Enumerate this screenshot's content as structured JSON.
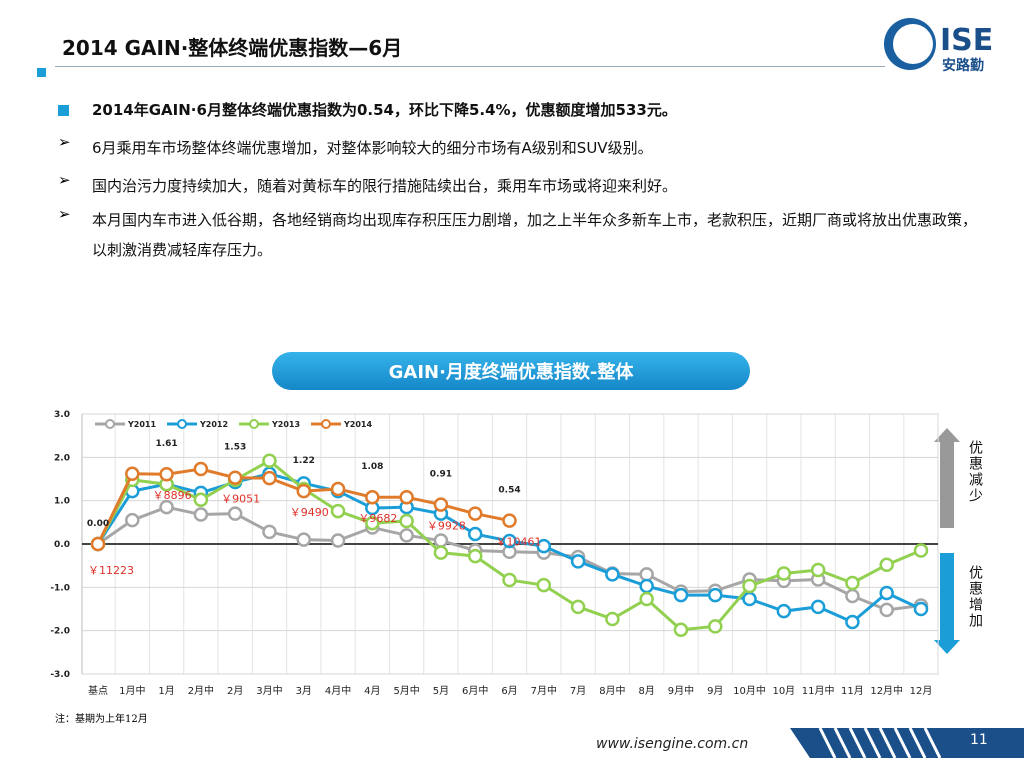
{
  "header": {
    "title": "2014 GAIN·整体终端优惠指数—6月",
    "logo": "ISE",
    "logo_sub": "安路勤"
  },
  "bullets": [
    "2014年GAIN·6月整体终端优惠指数为0.54，环比下降5.4%，优惠额度增加533元。",
    "6月乘用车市场整体终端优惠增加，对整体影响较大的细分市场有A级别和SUV级别。",
    "国内治污力度持续加大，随着对黄标车的限行措施陆续出台，乘用车市场或将迎来利好。",
    "本月国内车市进入低谷期，各地经销商均出现库存积压压力剧增，加之上半年众多新车上市，老款积压，近期厂商或将放出优惠政策，以刺激消费减轻库存压力。"
  ],
  "chart_data": {
    "type": "line",
    "title": "GAIN·月度终端优惠指数-整体",
    "categories": [
      "基点",
      "1月中",
      "1月",
      "2月中",
      "2月",
      "3月中",
      "3月",
      "4月中",
      "4月",
      "5月中",
      "5月",
      "6月中",
      "6月",
      "7月中",
      "7月",
      "8月中",
      "8月",
      "9月中",
      "9月",
      "10月中",
      "10月",
      "11月中",
      "11月",
      "12月中",
      "12月"
    ],
    "series": [
      {
        "name": "Y2011",
        "color": "#a6a6a6",
        "values": [
          0,
          0.55,
          0.85,
          0.68,
          0.7,
          0.28,
          0.1,
          0.08,
          0.38,
          0.2,
          0.08,
          -0.15,
          -0.18,
          -0.2,
          -0.3,
          -0.68,
          -0.7,
          -1.1,
          -1.08,
          -0.82,
          -0.85,
          -0.82,
          -1.2,
          -1.52,
          -1.42
        ]
      },
      {
        "name": "Y2012",
        "color": "#1b9ed8",
        "values": [
          0,
          1.22,
          1.38,
          1.18,
          1.43,
          1.62,
          1.4,
          1.22,
          0.83,
          0.85,
          0.7,
          0.23,
          0.07,
          -0.05,
          -0.4,
          -0.7,
          -0.97,
          -1.18,
          -1.18,
          -1.27,
          -1.55,
          -1.45,
          -1.8,
          -1.13,
          -1.5
        ]
      },
      {
        "name": "Y2013",
        "color": "#92d050",
        "values": [
          0,
          1.48,
          1.38,
          1.02,
          1.48,
          1.92,
          1.27,
          0.76,
          0.48,
          0.53,
          -0.2,
          -0.28,
          -0.83,
          -0.95,
          -1.45,
          -1.73,
          -1.27,
          -1.98,
          -1.9,
          -0.97,
          -0.68,
          -0.6,
          -0.9,
          -0.48,
          -0.15
        ]
      },
      {
        "name": "Y2014",
        "color": "#e07b2b",
        "values": [
          0,
          1.62,
          1.61,
          1.73,
          1.53,
          1.52,
          1.22,
          1.27,
          1.08,
          1.08,
          0.91,
          0.7,
          0.54,
          null,
          null,
          null,
          null,
          null,
          null,
          null,
          null,
          null,
          null,
          null,
          null
        ],
        "value_labels": [
          "0.00",
          null,
          "1.61",
          null,
          "1.53",
          null,
          "1.22",
          null,
          "1.08",
          null,
          "0.91",
          null,
          "0.54",
          null,
          null,
          null,
          null,
          null,
          null,
          null,
          null,
          null,
          null,
          null,
          null
        ]
      }
    ],
    "annotations": [
      "￥11223",
      "￥8896",
      "￥9051",
      "￥9490",
      "￥9682",
      "￥9928",
      "￥10461"
    ],
    "arrow_labels": [
      "优惠减少",
      "优惠增加"
    ],
    "ylim": [
      -3,
      3
    ],
    "yticks": [
      {
        "value": -3,
        "label": "-3.0"
      },
      {
        "value": -2,
        "label": "-2.0"
      },
      {
        "value": -1,
        "label": "-1.0"
      },
      {
        "value": 0,
        "label": "0.0"
      },
      {
        "value": 1,
        "label": "1.0"
      },
      {
        "value": 2,
        "label": "2.0"
      },
      {
        "value": 3,
        "label": "3.0"
      }
    ],
    "grid": true,
    "legend": "top-left"
  },
  "footnote": "注：基期为上年12月",
  "footer": {
    "url": "www.isengine.com.cn",
    "page": 11
  }
}
